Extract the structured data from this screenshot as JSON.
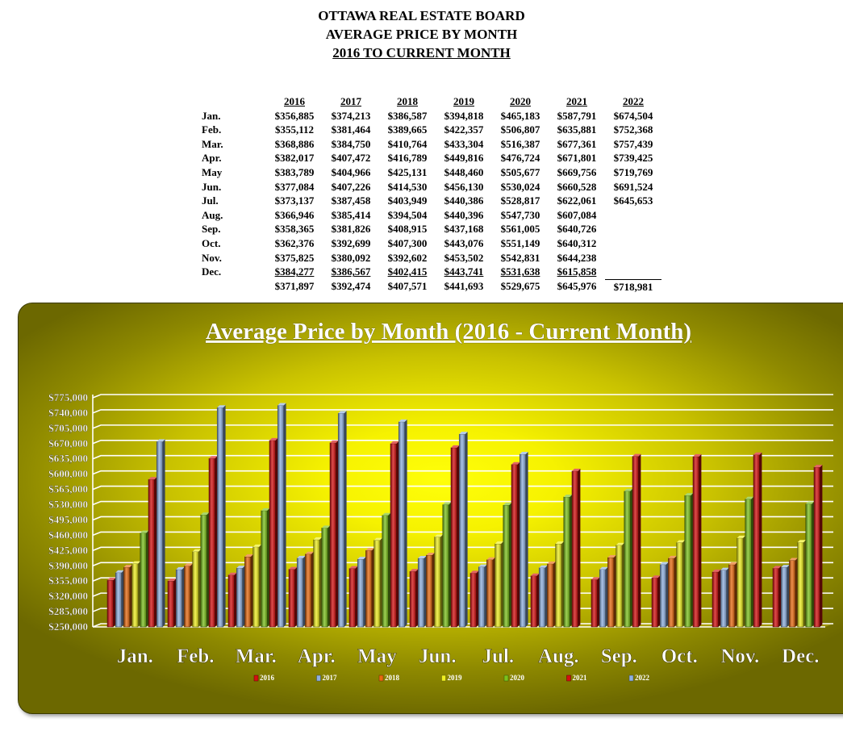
{
  "header": {
    "line1": "OTTAWA REAL ESTATE BOARD",
    "line2": "AVERAGE PRICE BY MONTH",
    "line3": "2016 TO CURRENT MONTH"
  },
  "table": {
    "years": [
      "2016",
      "2017",
      "2018",
      "2019",
      "2020",
      "2021",
      "2022"
    ],
    "rows": [
      {
        "month": "Jan.",
        "values": [
          "$356,885",
          "$374,213",
          "$386,587",
          "$394,818",
          "$465,183",
          "$587,791",
          "$674,504"
        ]
      },
      {
        "month": "Feb.",
        "values": [
          "$355,112",
          "$381,464",
          "$389,665",
          "$422,357",
          "$506,807",
          "$635,881",
          "$752,368"
        ]
      },
      {
        "month": "Mar.",
        "values": [
          "$368,886",
          "$384,750",
          "$410,764",
          "$433,304",
          "$516,387",
          "$677,361",
          "$757,439"
        ]
      },
      {
        "month": "Apr.",
        "values": [
          "$382,017",
          "$407,472",
          "$416,789",
          "$449,816",
          "$476,724",
          "$671,801",
          "$739,425"
        ]
      },
      {
        "month": "May",
        "values": [
          "$383,789",
          "$404,966",
          "$425,131",
          "$448,460",
          "$505,677",
          "$669,756",
          "$719,769"
        ]
      },
      {
        "month": "Jun.",
        "values": [
          "$377,084",
          "$407,226",
          "$414,530",
          "$456,130",
          "$530,024",
          "$660,528",
          "$691,524"
        ]
      },
      {
        "month": "Jul.",
        "values": [
          "$373,137",
          "$387,458",
          "$403,949",
          "$440,386",
          "$528,817",
          "$622,061",
          "$645,653"
        ]
      },
      {
        "month": "Aug.",
        "values": [
          "$366,946",
          "$385,414",
          "$394,504",
          "$440,396",
          "$547,730",
          "$607,084",
          ""
        ]
      },
      {
        "month": "Sep.",
        "values": [
          "$358,365",
          "$381,826",
          "$408,915",
          "$437,168",
          "$561,005",
          "$640,726",
          ""
        ]
      },
      {
        "month": "Oct.",
        "values": [
          "$362,376",
          "$392,699",
          "$407,300",
          "$443,076",
          "$551,149",
          "$640,312",
          ""
        ]
      },
      {
        "month": "Nov.",
        "values": [
          "$375,825",
          "$380,092",
          "$392,602",
          "$453,502",
          "$542,831",
          "$644,238",
          ""
        ]
      },
      {
        "month": "Dec.",
        "values": [
          "$384,277",
          "$386,567",
          "$402,415",
          "$443,741",
          "$531,638",
          "$615,858",
          ""
        ]
      }
    ],
    "totals": [
      "$371,897",
      "$392,474",
      "$407,571",
      "$441,693",
      "$529,675",
      "$645,976",
      "$718,981"
    ]
  },
  "chart_data": {
    "type": "bar",
    "title": "Average Price by Month (2016 - Current Month)",
    "categories": [
      "Jan.",
      "Feb.",
      "Mar.",
      "Apr.",
      "May",
      "Jun.",
      "Jul.",
      "Aug.",
      "Sep.",
      "Oct.",
      "Nov.",
      "Dec."
    ],
    "ylim": [
      250000,
      775000
    ],
    "y_ticks": [
      "$250,000",
      "$285,000",
      "$320,000",
      "$355,000",
      "$390,000",
      "$425,000",
      "$460,000",
      "$495,000",
      "$530,000",
      "$565,000",
      "$600,000",
      "$635,000",
      "$670,000",
      "$705,000",
      "$740,000",
      "$775,000"
    ],
    "grid": true,
    "legend_position": "bottom",
    "series": [
      {
        "name": "2016",
        "color": "#d41010",
        "values": [
          356885,
          355112,
          368886,
          382017,
          383789,
          377084,
          373137,
          366946,
          358365,
          362376,
          375825,
          384277
        ]
      },
      {
        "name": "2017",
        "color": "#8fb0e0",
        "values": [
          374213,
          381464,
          384750,
          407472,
          404966,
          407226,
          387458,
          385414,
          381826,
          392699,
          380092,
          386567
        ]
      },
      {
        "name": "2018",
        "color": "#e86a10",
        "values": [
          386587,
          389665,
          410764,
          416789,
          425131,
          414530,
          403949,
          394504,
          408915,
          407300,
          392602,
          402415
        ]
      },
      {
        "name": "2019",
        "color": "#f0f020",
        "values": [
          394818,
          422357,
          433304,
          449816,
          448460,
          456130,
          440386,
          440396,
          437168,
          443076,
          453502,
          443741
        ]
      },
      {
        "name": "2020",
        "color": "#7cc21c",
        "values": [
          465183,
          506807,
          516387,
          476724,
          505677,
          530024,
          528817,
          547730,
          561005,
          551149,
          542831,
          531638
        ]
      },
      {
        "name": "2021",
        "color": "#d41010",
        "values": [
          587791,
          635881,
          677361,
          671801,
          669756,
          660528,
          622061,
          607084,
          640726,
          640312,
          644238,
          615858
        ]
      },
      {
        "name": "2022",
        "color": "#8fb0e0",
        "values": [
          674504,
          752368,
          757439,
          739425,
          719769,
          691524,
          645653,
          null,
          null,
          null,
          null,
          null
        ]
      }
    ]
  }
}
